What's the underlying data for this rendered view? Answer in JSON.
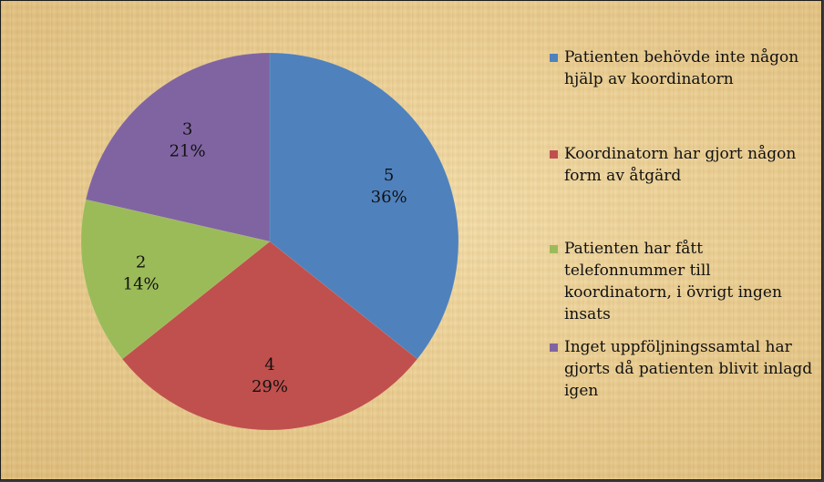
{
  "chart_data": {
    "type": "pie",
    "categories": [
      "Patienten behövde inte någon hjälp av koordinatorn",
      "Koordinatorn har gjort någon form av åtgärd",
      "Patienten har fått telefonnummer till koordinatorn, i övrigt ingen insats",
      "Inget uppföljningssamtal har gjorts då patienten blivit inlagd igen"
    ],
    "values": [
      5,
      4,
      2,
      3
    ],
    "percent_labels": [
      "36%",
      "29%",
      "14%",
      "21%"
    ],
    "value_labels": [
      "5",
      "4",
      "2",
      "3"
    ],
    "colors": [
      "#4f81bd",
      "#c0504d",
      "#9bbb59",
      "#8064a2"
    ],
    "legend": "right",
    "start_angle_deg": 0,
    "direction": "clockwise"
  }
}
